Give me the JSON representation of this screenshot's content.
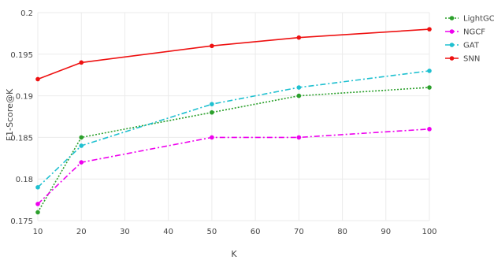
{
  "chart_data": {
    "type": "line",
    "title": "",
    "xlabel": "K",
    "ylabel": "F1-Score@K",
    "xlim": [
      10,
      100
    ],
    "ylim": [
      0.175,
      0.2
    ],
    "xticks": [
      10,
      20,
      30,
      40,
      50,
      60,
      70,
      80,
      90,
      100
    ],
    "yticks": [
      0.175,
      0.18,
      0.185,
      0.19,
      0.195,
      0.2
    ],
    "grid": true,
    "legend_position": "top-right",
    "x": [
      10,
      20,
      50,
      70,
      100
    ],
    "series": [
      {
        "name": "LightGCN",
        "color": "#2ca02c",
        "dash": "dotted",
        "values": [
          0.176,
          0.185,
          0.188,
          0.19,
          0.191
        ]
      },
      {
        "name": "NGCF",
        "color": "#ee00ee",
        "dash": "dashdot",
        "values": [
          0.177,
          0.182,
          0.185,
          0.185,
          0.186
        ]
      },
      {
        "name": "GAT",
        "color": "#1fc0d0",
        "dash": "dashdot",
        "values": [
          0.179,
          0.184,
          0.189,
          0.191,
          0.193
        ]
      },
      {
        "name": "SNN",
        "color": "#ee1111",
        "dash": "solid",
        "values": [
          0.192,
          0.194,
          0.196,
          0.197,
          0.198
        ]
      }
    ]
  }
}
